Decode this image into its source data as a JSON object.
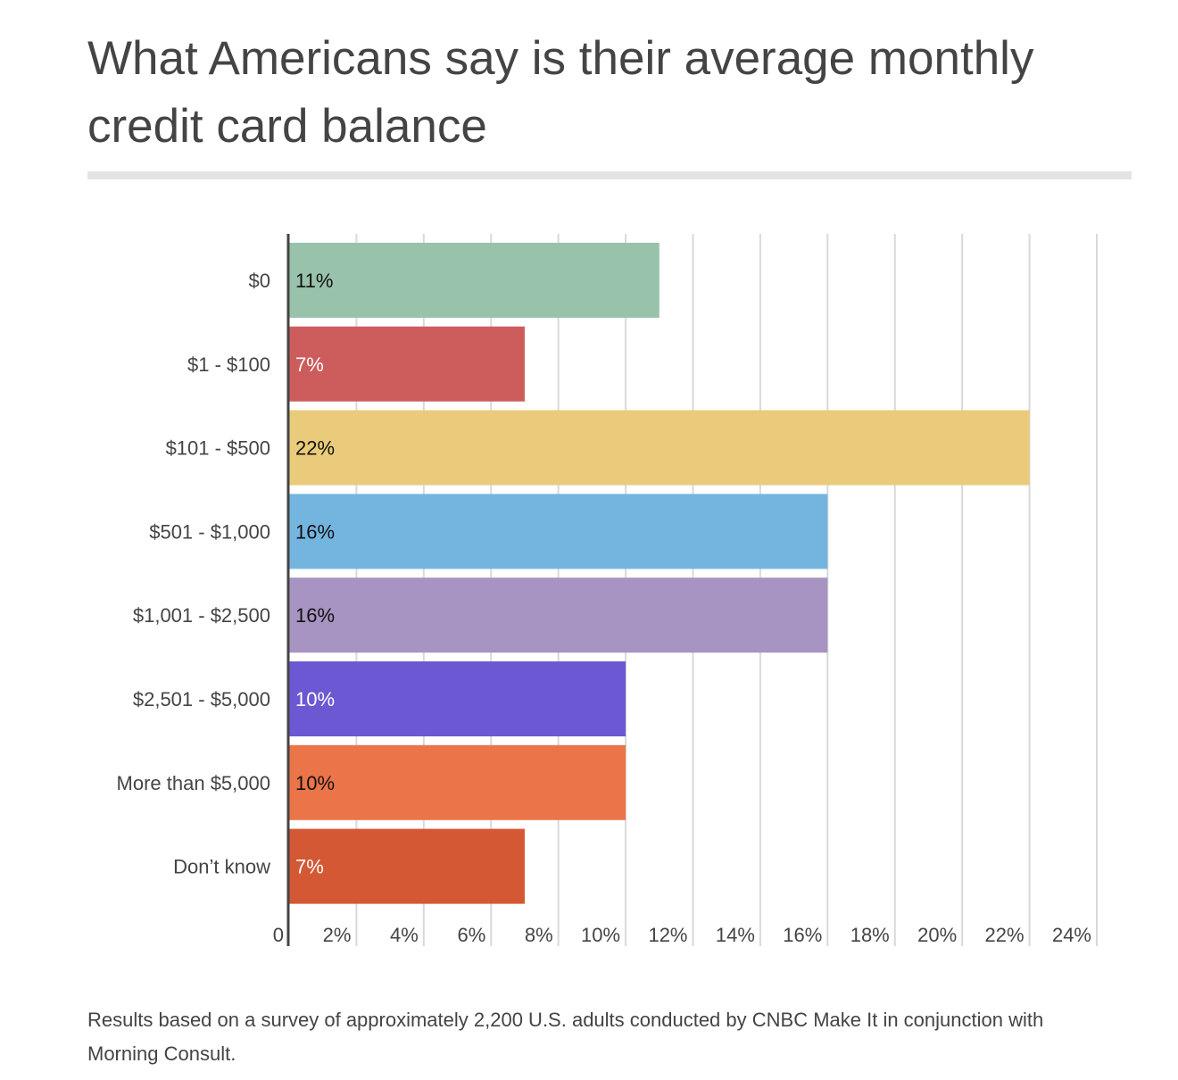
{
  "chart_data": {
    "type": "bar",
    "orientation": "horizontal",
    "title": "What Americans say is their average monthly credit card balance",
    "categories": [
      "$0",
      "$1 - $100",
      "$101 - $500",
      "$501 - $1,000",
      "$1,001 - $2,500",
      "$2,501 - $5,000",
      "More than $5,000",
      "Don’t know"
    ],
    "values": [
      11,
      7,
      22,
      16,
      16,
      10,
      10,
      7
    ],
    "data_labels": [
      "11%",
      "7%",
      "22%",
      "16%",
      "16%",
      "10%",
      "10%",
      "7%"
    ],
    "colors": [
      "#98c2aa",
      "#cd5c5c",
      "#eacb7b",
      "#74b5e0",
      "#a794c2",
      "#6c58d3",
      "#ec7449",
      "#d45833"
    ],
    "label_colors": [
      "#111111",
      "#ffffff",
      "#111111",
      "#111111",
      "#111111",
      "#ffffff",
      "#111111",
      "#ffffff"
    ],
    "xlim": [
      0,
      24
    ],
    "xticks": [
      "0",
      "2%",
      "4%",
      "6%",
      "8%",
      "10%",
      "12%",
      "14%",
      "16%",
      "18%",
      "20%",
      "22%",
      "24%"
    ],
    "grid": true,
    "xlabel": "",
    "ylabel": ""
  },
  "footnote": "Results based on a survey of approximately 2,200 U.S. adults conducted by CNBC Make It in conjunction with Morning Consult."
}
